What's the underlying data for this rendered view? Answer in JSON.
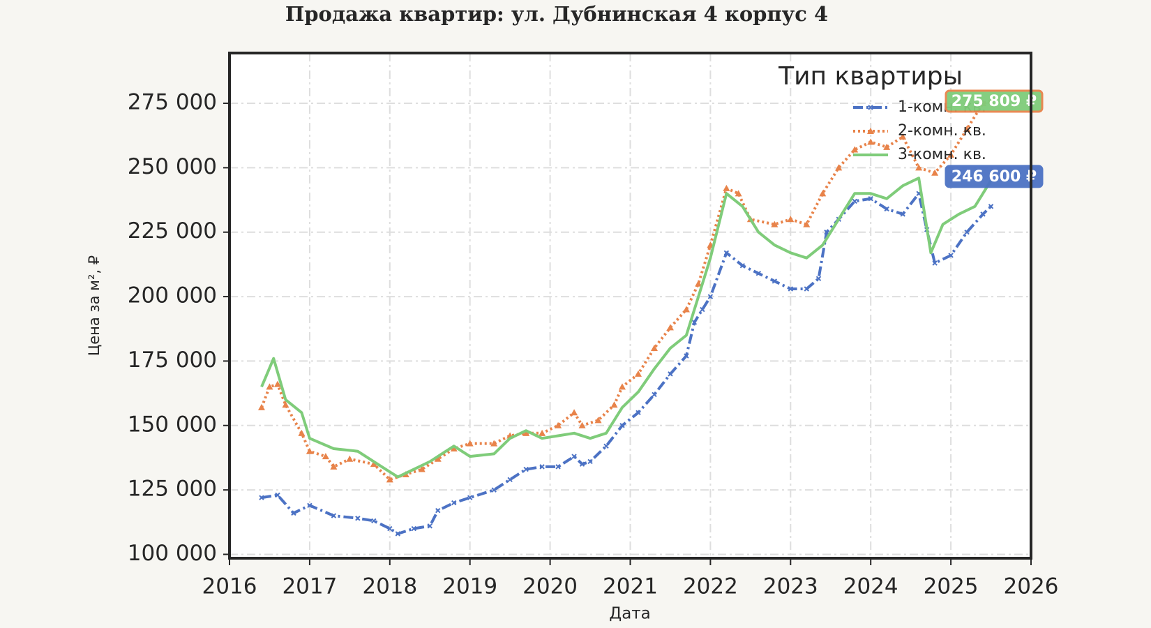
{
  "chart_data": {
    "type": "line",
    "title": "Продажа квартир: ул. Дубнинская 4 корпус 4",
    "x_label": "Дата",
    "y_label": "Цена за м², ₽",
    "legend_title": "Тип квартиры",
    "legend_position": "upper right",
    "grid": true,
    "xlim": [
      2016,
      2026
    ],
    "xticks": [
      2016,
      2017,
      2018,
      2019,
      2020,
      2021,
      2022,
      2023,
      2024,
      2025,
      2026
    ],
    "ylim": [
      98500,
      294500
    ],
    "yticks": [
      {
        "value": 100000,
        "label": "100 000"
      },
      {
        "value": 125000,
        "label": "125 000"
      },
      {
        "value": 150000,
        "label": "150 000"
      },
      {
        "value": 175000,
        "label": "175 000"
      },
      {
        "value": 200000,
        "label": "200 000"
      },
      {
        "value": 225000,
        "label": "225 000"
      },
      {
        "value": 250000,
        "label": "250 000"
      },
      {
        "value": 275000,
        "label": "275 000"
      }
    ],
    "series": [
      {
        "name": "1-комн. кв.",
        "color": "#4c72c4",
        "marker": "x",
        "dash": "14 5 3 5",
        "x": [
          2016.4,
          2016.6,
          2016.8,
          2017.0,
          2017.3,
          2017.6,
          2017.8,
          2018.0,
          2018.1,
          2018.3,
          2018.5,
          2018.6,
          2018.8,
          2019.0,
          2019.3,
          2019.5,
          2019.7,
          2019.9,
          2020.1,
          2020.3,
          2020.4,
          2020.5,
          2020.7,
          2020.9,
          2021.1,
          2021.3,
          2021.5,
          2021.7,
          2021.8,
          2021.9,
          2022.0,
          2022.2,
          2022.4,
          2022.6,
          2022.8,
          2023.0,
          2023.2,
          2023.35,
          2023.45,
          2023.6,
          2023.8,
          2024.0,
          2024.2,
          2024.4,
          2024.6,
          2024.7,
          2024.8,
          2025.0,
          2025.2,
          2025.4,
          2025.5
        ],
        "values": [
          122000,
          123000,
          116000,
          119000,
          115000,
          114000,
          113000,
          110000,
          108000,
          110000,
          111000,
          117000,
          120000,
          122000,
          125000,
          129000,
          133000,
          134000,
          134000,
          138000,
          135000,
          136000,
          142000,
          150000,
          155000,
          162000,
          170000,
          177000,
          190000,
          195000,
          200000,
          217000,
          212000,
          209000,
          206000,
          203000,
          203000,
          207000,
          225000,
          230000,
          237000,
          238000,
          234000,
          232000,
          240000,
          226000,
          213000,
          216000,
          225000,
          232000,
          235000
        ]
      },
      {
        "name": "2-комн. кв.",
        "color": "#e8834a",
        "marker": "triangle",
        "dash": "3 4",
        "x": [
          2016.4,
          2016.5,
          2016.6,
          2016.7,
          2016.9,
          2017.0,
          2017.2,
          2017.3,
          2017.5,
          2017.8,
          2018.0,
          2018.2,
          2018.4,
          2018.6,
          2018.8,
          2019.0,
          2019.3,
          2019.5,
          2019.7,
          2019.9,
          2020.1,
          2020.3,
          2020.4,
          2020.6,
          2020.8,
          2020.9,
          2021.1,
          2021.3,
          2021.5,
          2021.7,
          2021.85,
          2022.0,
          2022.2,
          2022.35,
          2022.5,
          2022.8,
          2023.0,
          2023.2,
          2023.4,
          2023.6,
          2023.8,
          2024.0,
          2024.2,
          2024.4,
          2024.6,
          2024.8,
          2025.0,
          2025.2,
          2025.4,
          2025.5
        ],
        "values": [
          157000,
          165000,
          166000,
          158000,
          147000,
          140000,
          138000,
          134000,
          137000,
          135000,
          129000,
          131000,
          133000,
          137000,
          141000,
          143000,
          143000,
          146000,
          147000,
          147000,
          150000,
          155000,
          150000,
          152000,
          158000,
          165000,
          170000,
          180000,
          188000,
          195000,
          205000,
          220000,
          242000,
          240000,
          230000,
          228000,
          230000,
          228000,
          240000,
          250000,
          257000,
          260000,
          258000,
          262000,
          250000,
          248000,
          255000,
          265000,
          275000,
          276000
        ]
      },
      {
        "name": "3-комн. кв.",
        "color": "#7fcc7a",
        "marker": "none",
        "dash": "none",
        "x": [
          2016.4,
          2016.55,
          2016.7,
          2016.9,
          2017.0,
          2017.3,
          2017.6,
          2017.9,
          2018.1,
          2018.3,
          2018.5,
          2018.8,
          2019.0,
          2019.3,
          2019.5,
          2019.7,
          2019.9,
          2020.1,
          2020.3,
          2020.5,
          2020.7,
          2020.9,
          2021.1,
          2021.3,
          2021.5,
          2021.7,
          2021.85,
          2022.0,
          2022.2,
          2022.4,
          2022.6,
          2022.8,
          2023.0,
          2023.2,
          2023.4,
          2023.6,
          2023.8,
          2024.0,
          2024.2,
          2024.4,
          2024.6,
          2024.75,
          2024.9,
          2025.1,
          2025.3,
          2025.5
        ],
        "values": [
          165000,
          176000,
          160000,
          155000,
          145000,
          141000,
          140000,
          134000,
          130000,
          133000,
          136000,
          142000,
          138000,
          139000,
          145000,
          148000,
          145000,
          146000,
          147000,
          145000,
          147000,
          157000,
          163000,
          172000,
          180000,
          185000,
          200000,
          215000,
          240000,
          235000,
          225000,
          220000,
          217000,
          215000,
          220000,
          230000,
          240000,
          240000,
          238000,
          243000,
          246000,
          217000,
          228000,
          232000,
          235000,
          245000
        ]
      }
    ],
    "annotations": [
      {
        "text": "275 809 ₽",
        "value": 275809,
        "color": "#7fcc7a",
        "edge": "#e8834a"
      },
      {
        "text": "246 600 ₽",
        "value": 246600,
        "color": "#4c72c4",
        "edge": "#4c72c4"
      }
    ]
  }
}
